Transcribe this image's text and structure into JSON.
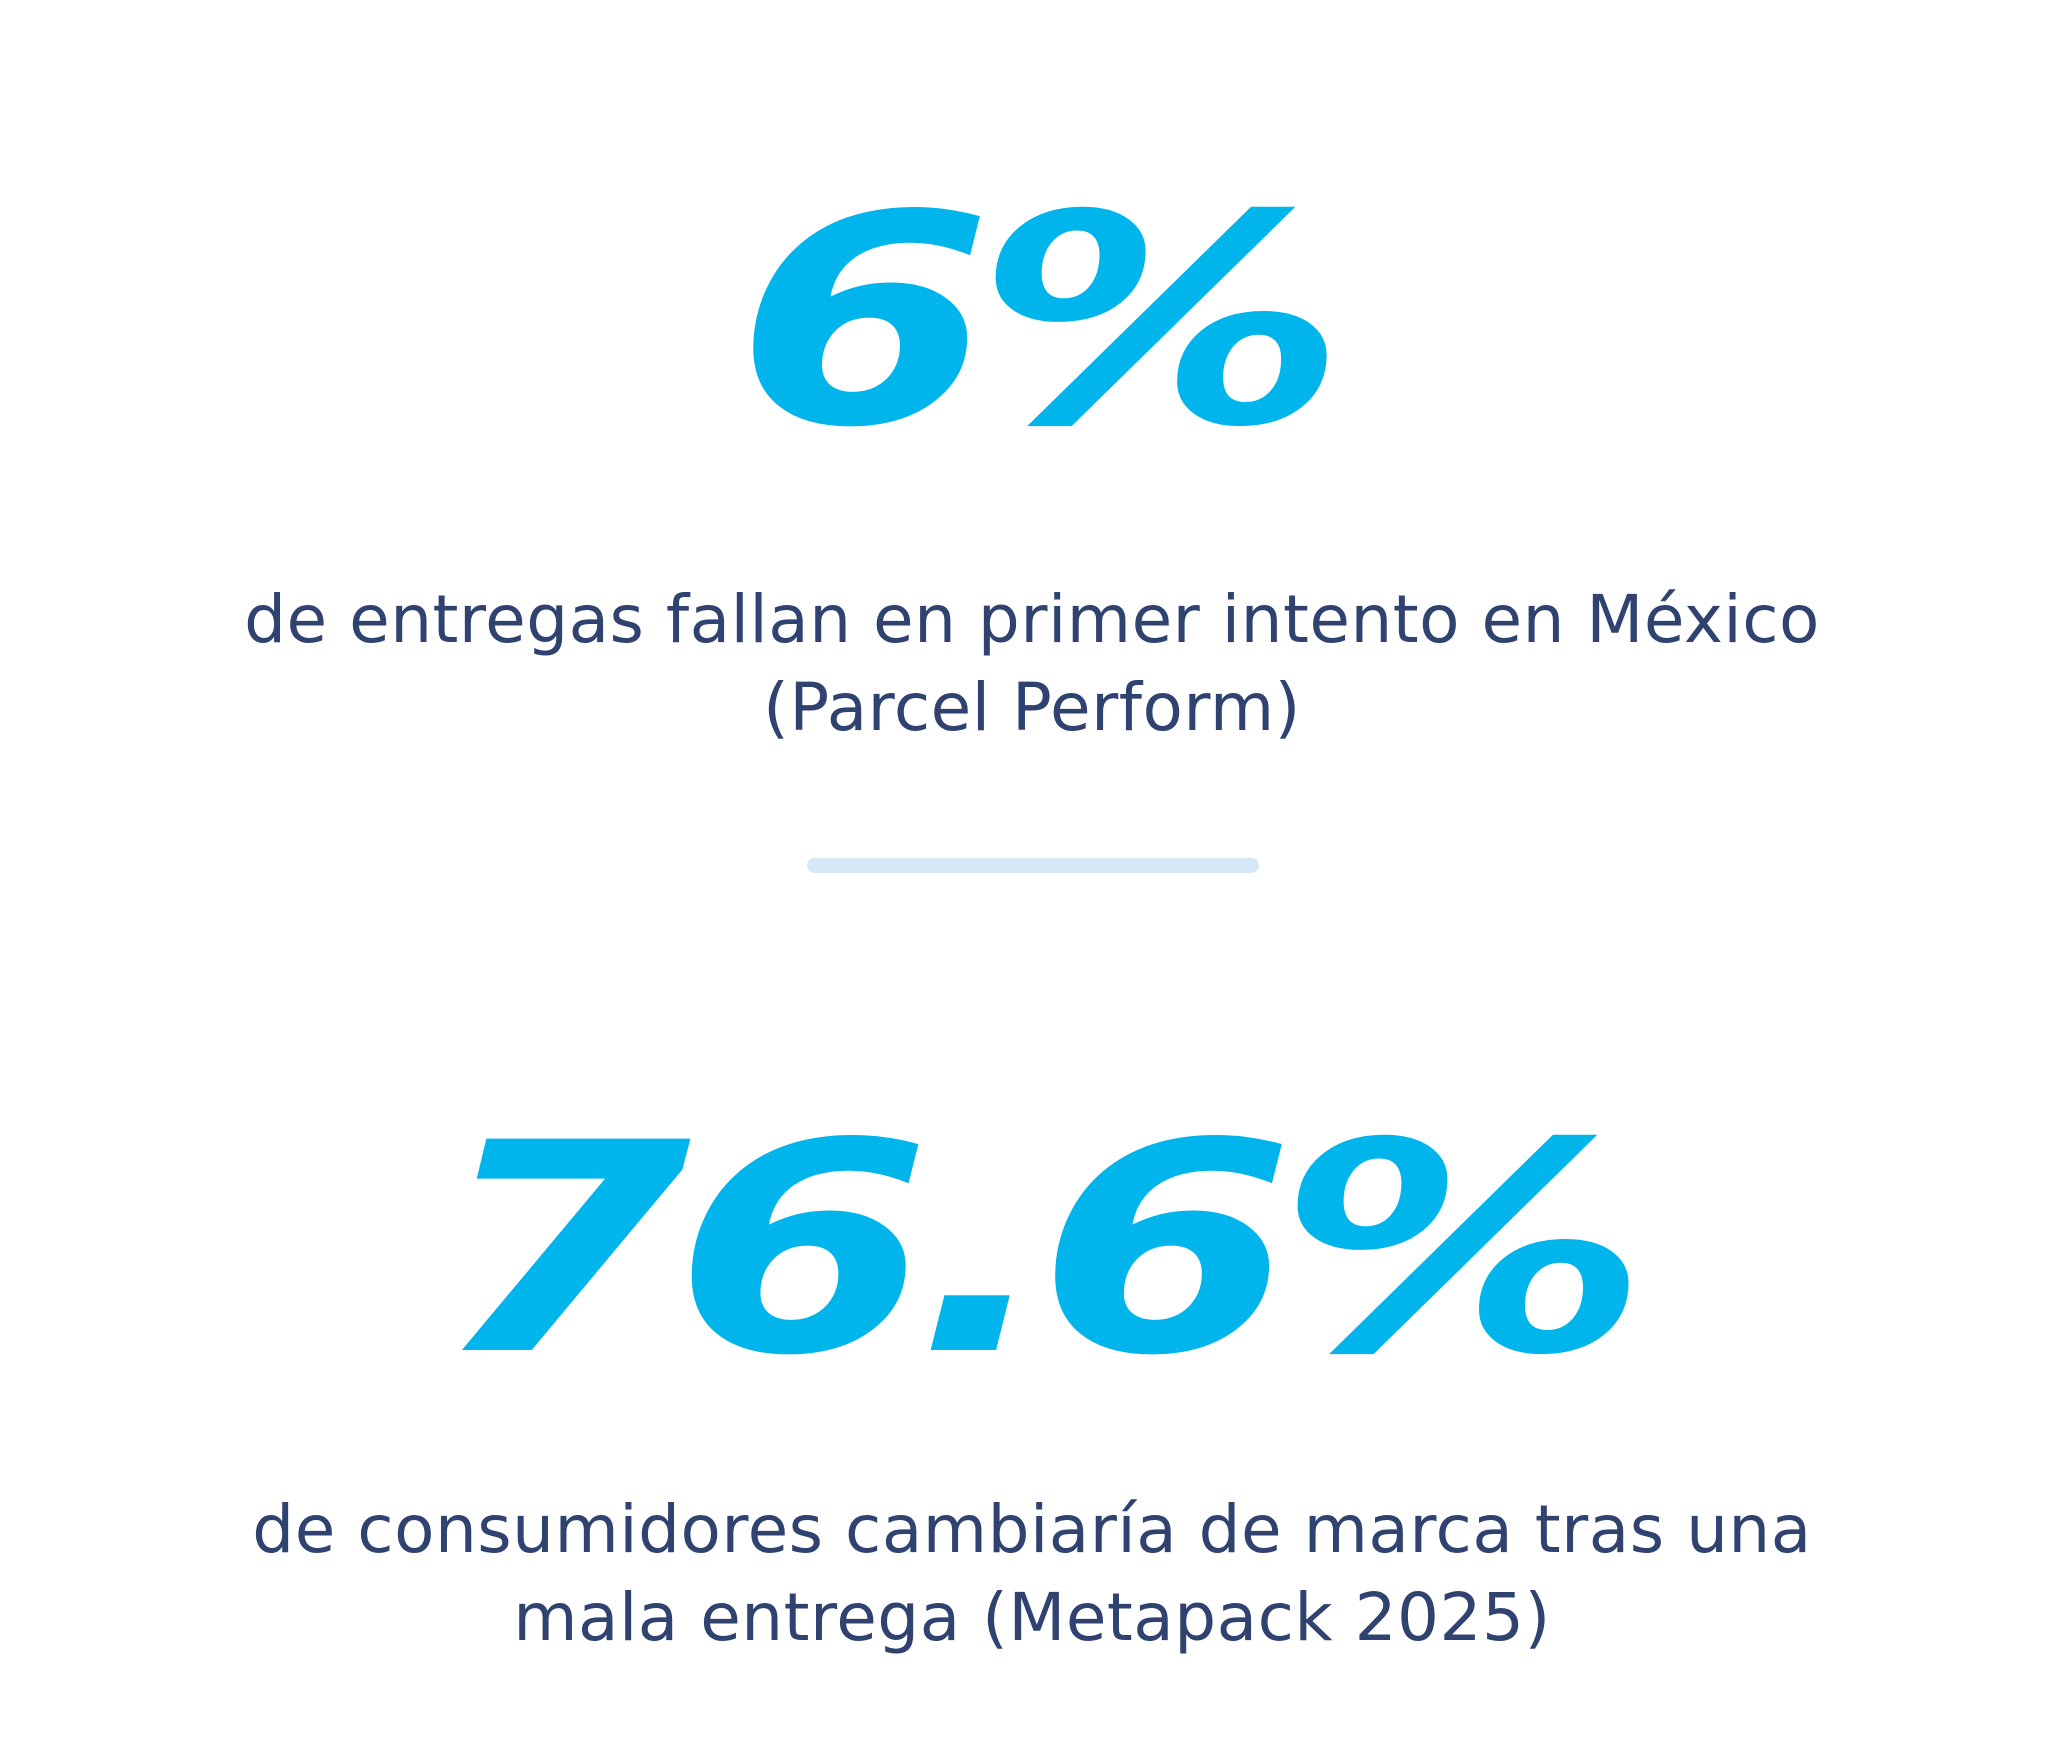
{
  "colors": {
    "accent": "#00b5ec",
    "text": "#2f4270",
    "divider": "#d5e8f8",
    "background": "#ffffff"
  },
  "stats": [
    {
      "value": "6%",
      "description_lines": [
        "de entregas fallan en primer intento en México",
        "(Parcel Perform)"
      ]
    },
    {
      "value": "76.6%",
      "description_lines": [
        "de consumidores cambiaría de marca tras una",
        "mala entrega (Metapack 2025)"
      ]
    }
  ]
}
